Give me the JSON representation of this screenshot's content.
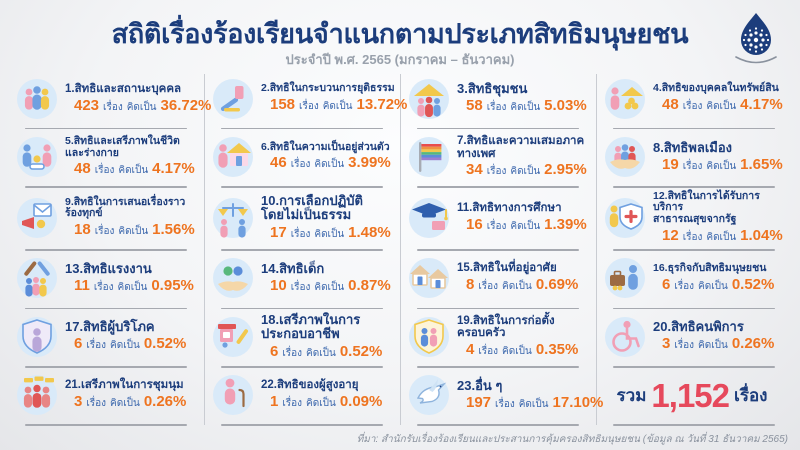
{
  "header": {
    "title": "สถิติเรื่องร้องเรียนจำแนกตามประเภทสิทธิมนุษยชน",
    "subtitle": "ประจำปี พ.ศ. 2565 (มกราคม – ธันวาคม)",
    "logo": "nhrc-water-drop-emblem"
  },
  "labels": {
    "unit": "เรื่อง",
    "percent_prefix": "คิดเป็น"
  },
  "items": [
    {
      "no": "1.",
      "lines": [
        "สิทธิและสถานะบุคคล"
      ],
      "count": "423",
      "percent": "36.72%",
      "icon": "people-group"
    },
    {
      "no": "2.",
      "lines": [
        "สิทธิในกระบวนการยุติธรรม"
      ],
      "count": "158",
      "percent": "13.72%",
      "icon": "gavel"
    },
    {
      "no": "3.",
      "lines": [
        "สิทธิชุมชน"
      ],
      "count": "58",
      "percent": "5.03%",
      "icon": "house-people"
    },
    {
      "no": "4.",
      "lines": [
        "สิทธิของบุคคลในทรัพย์สิน"
      ],
      "count": "48",
      "percent": "4.17%",
      "icon": "person-coins-house"
    },
    {
      "no": "5.",
      "lines": [
        "สิทธิและเสรีภาพในชีวิต",
        "และร่างกาย"
      ],
      "count": "48",
      "percent": "4.17%",
      "icon": "parents-baby"
    },
    {
      "no": "6.",
      "lines": [
        "สิทธิในความเป็นอยู่ส่วนตัว"
      ],
      "count": "46",
      "percent": "3.99%",
      "icon": "person-house"
    },
    {
      "no": "7.",
      "lines": [
        "สิทธิและความเสมอภาค",
        "ทางเพศ"
      ],
      "count": "34",
      "percent": "2.95%",
      "icon": "rainbow-flag"
    },
    {
      "no": "8.",
      "lines": [
        "สิทธิพลเมือง"
      ],
      "count": "19",
      "percent": "1.65%",
      "icon": "hands-people"
    },
    {
      "no": "9.",
      "lines": [
        "สิทธิในการเสนอเรื่องราว",
        "ร้องทุกข์"
      ],
      "count": "18",
      "percent": "1.56%",
      "icon": "megaphone-letter"
    },
    {
      "no": "10.",
      "lines": [
        "การเลือกปฏิบัติ",
        "โดยไม่เป็นธรรม"
      ],
      "count": "17",
      "percent": "1.48%",
      "icon": "scales-people"
    },
    {
      "no": "11.",
      "lines": [
        "สิทธิทางการศึกษา"
      ],
      "count": "16",
      "percent": "1.39%",
      "icon": "graduation-cap"
    },
    {
      "no": "12.",
      "lines": [
        "สิทธิในการได้รับการบริการ",
        "สาธารณสุขจากรัฐ"
      ],
      "count": "12",
      "percent": "1.04%",
      "icon": "person-medical-shield"
    },
    {
      "no": "13.",
      "lines": [
        "สิทธิแรงงาน"
      ],
      "count": "11",
      "percent": "0.95%",
      "icon": "tools-people"
    },
    {
      "no": "14.",
      "lines": [
        "สิทธิเด็ก"
      ],
      "count": "10",
      "percent": "0.87%",
      "icon": "hand-children"
    },
    {
      "no": "15.",
      "lines": [
        "สิทธิในที่อยู่อาศัย"
      ],
      "count": "8",
      "percent": "0.69%",
      "icon": "houses"
    },
    {
      "no": "16.",
      "lines": [
        "ธุรกิจกับสิทธิมนุษยชน"
      ],
      "count": "6",
      "percent": "0.52%",
      "icon": "briefcase-person"
    },
    {
      "no": "17.",
      "lines": [
        "สิทธิผู้บริโภค"
      ],
      "count": "6",
      "percent": "0.52%",
      "icon": "shield-person"
    },
    {
      "no": "18.",
      "lines": [
        "เสรีภาพในการ",
        "ประกอบอาชีพ"
      ],
      "count": "6",
      "percent": "0.52%",
      "icon": "tools-shop"
    },
    {
      "no": "19.",
      "lines": [
        "สิทธิในการก่อตั้ง",
        "ครอบครัว"
      ],
      "count": "4",
      "percent": "0.35%",
      "icon": "shield-family"
    },
    {
      "no": "20.",
      "lines": [
        "สิทธิคนพิการ"
      ],
      "count": "3",
      "percent": "0.26%",
      "icon": "wheelchair-person"
    },
    {
      "no": "21.",
      "lines": [
        "เสรีภาพในการชุมนุม"
      ],
      "count": "3",
      "percent": "0.26%",
      "icon": "crowd-banners"
    },
    {
      "no": "22.",
      "lines": [
        "สิทธิของผู้สูงอายุ"
      ],
      "count": "1",
      "percent": "0.09%",
      "icon": "elderly-person-cane"
    },
    {
      "no": "23.",
      "lines": [
        "อื่น ๆ"
      ],
      "count": "197",
      "percent": "17.10%",
      "icon": "dove"
    }
  ],
  "summary": {
    "prefix": "รวม",
    "total": "1,152",
    "suffix": "เรื่อง"
  },
  "footer": {
    "source_note": "ที่มา: สำนักรับเรื่องร้องเรียนและประสานการคุ้มครองสิทธิมนุษยชน (ข้อมูล ณ วันที่ 31 ธันวาคม 2565)"
  },
  "colors": {
    "navy": "#1C3D7C",
    "orange": "#EE7420",
    "red_total": "#E6495C",
    "blue_text": "#3A66AC",
    "icon_bg": "#D9EAF9",
    "divider": "#C9CCD2"
  },
  "chart_data": {
    "type": "table",
    "title": "สถิติเรื่องร้องเรียนจำแนกตามประเภทสิทธิมนุษยชน ประจำปี พ.ศ. 2565 (มกราคม – ธันวาคม)",
    "categories": [
      "สิทธิและสถานะบุคคล",
      "สิทธิในกระบวนการยุติธรรม",
      "สิทธิชุมชน",
      "สิทธิของบุคคลในทรัพย์สิน",
      "สิทธิและเสรีภาพในชีวิตและร่างกาย",
      "สิทธิในความเป็นอยู่ส่วนตัว",
      "สิทธิและความเสมอภาคทางเพศ",
      "สิทธิพลเมือง",
      "สิทธิในการเสนอเรื่องราวร้องทุกข์",
      "การเลือกปฏิบัติโดยไม่เป็นธรรม",
      "สิทธิทางการศึกษา",
      "สิทธิในการได้รับการบริการสาธารณสุขจากรัฐ",
      "สิทธิแรงงาน",
      "สิทธิเด็ก",
      "สิทธิในที่อยู่อาศัย",
      "ธุรกิจกับสิทธิมนุษยชน",
      "สิทธิผู้บริโภค",
      "เสรีภาพในการประกอบอาชีพ",
      "สิทธิในการก่อตั้งครอบครัว",
      "สิทธิคนพิการ",
      "เสรีภาพในการชุมนุม",
      "สิทธิของผู้สูงอายุ",
      "อื่น ๆ"
    ],
    "values": [
      423,
      158,
      58,
      48,
      48,
      46,
      34,
      19,
      18,
      17,
      16,
      12,
      11,
      10,
      8,
      6,
      6,
      6,
      4,
      3,
      3,
      1,
      197
    ],
    "percents": [
      36.72,
      13.72,
      5.03,
      4.17,
      4.17,
      3.99,
      2.95,
      1.65,
      1.56,
      1.48,
      1.39,
      1.04,
      0.95,
      0.87,
      0.69,
      0.52,
      0.52,
      0.52,
      0.35,
      0.26,
      0.26,
      0.09,
      17.1
    ],
    "unit": "เรื่อง",
    "total": 1152
  }
}
